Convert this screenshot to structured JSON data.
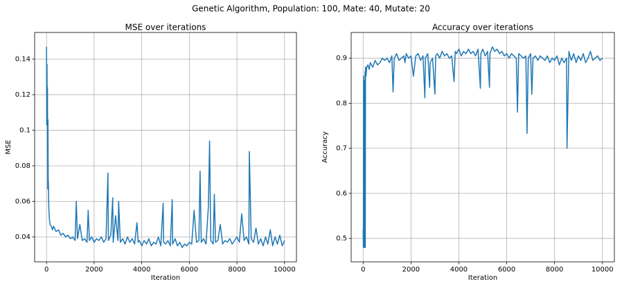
{
  "title": "Genetic Algorithm, Population: 100, Mate: 40, Mutate: 20",
  "chart_data": [
    {
      "type": "line",
      "title": "MSE over iterations",
      "xlabel": "Iteration",
      "ylabel": "MSE",
      "grid": true,
      "color": "#1f77b4",
      "xlim": [
        -500,
        10500
      ],
      "ylim": [
        0.026,
        0.155
      ],
      "xticks": [
        0,
        2000,
        4000,
        6000,
        8000,
        10000
      ],
      "yticks": [
        0.04,
        0.06,
        0.08,
        0.1,
        0.12,
        0.14
      ],
      "x": [
        0,
        10,
        20,
        30,
        40,
        50,
        60,
        70,
        80,
        90,
        100,
        120,
        150,
        200,
        250,
        300,
        400,
        500,
        600,
        700,
        800,
        900,
        1000,
        1100,
        1200,
        1250,
        1300,
        1400,
        1500,
        1600,
        1700,
        1750,
        1800,
        1900,
        2000,
        2100,
        2200,
        2300,
        2400,
        2500,
        2580,
        2600,
        2700,
        2780,
        2800,
        2900,
        3000,
        3030,
        3100,
        3200,
        3300,
        3400,
        3500,
        3600,
        3700,
        3800,
        3850,
        3900,
        4000,
        4100,
        4200,
        4300,
        4400,
        4500,
        4600,
        4700,
        4800,
        4900,
        4920,
        5000,
        5100,
        5200,
        5280,
        5300,
        5400,
        5500,
        5600,
        5700,
        5800,
        5900,
        6000,
        6100,
        6200,
        6300,
        6400,
        6450,
        6500,
        6600,
        6700,
        6800,
        6850,
        6900,
        7000,
        7050,
        7100,
        7200,
        7300,
        7400,
        7500,
        7600,
        7700,
        7800,
        7900,
        8000,
        8100,
        8200,
        8300,
        8400,
        8500,
        8520,
        8600,
        8700,
        8800,
        8900,
        9000,
        9100,
        9200,
        9300,
        9400,
        9500,
        9600,
        9700,
        9800,
        9900,
        10000
      ],
      "values": [
        0.147,
        0.103,
        0.137,
        0.105,
        0.124,
        0.067,
        0.106,
        0.072,
        0.07,
        0.06,
        0.055,
        0.05,
        0.047,
        0.046,
        0.044,
        0.046,
        0.043,
        0.044,
        0.041,
        0.042,
        0.04,
        0.041,
        0.039,
        0.04,
        0.038,
        0.06,
        0.039,
        0.047,
        0.038,
        0.039,
        0.037,
        0.055,
        0.038,
        0.04,
        0.037,
        0.039,
        0.038,
        0.04,
        0.037,
        0.039,
        0.076,
        0.038,
        0.041,
        0.062,
        0.037,
        0.052,
        0.038,
        0.06,
        0.037,
        0.039,
        0.036,
        0.04,
        0.037,
        0.039,
        0.036,
        0.048,
        0.037,
        0.038,
        0.035,
        0.038,
        0.036,
        0.039,
        0.035,
        0.037,
        0.036,
        0.04,
        0.035,
        0.059,
        0.037,
        0.036,
        0.038,
        0.035,
        0.061,
        0.036,
        0.039,
        0.035,
        0.037,
        0.034,
        0.036,
        0.035,
        0.037,
        0.036,
        0.055,
        0.037,
        0.038,
        0.077,
        0.037,
        0.039,
        0.036,
        0.057,
        0.094,
        0.038,
        0.036,
        0.064,
        0.037,
        0.038,
        0.047,
        0.036,
        0.038,
        0.037,
        0.039,
        0.036,
        0.038,
        0.04,
        0.037,
        0.053,
        0.038,
        0.04,
        0.036,
        0.088,
        0.039,
        0.037,
        0.045,
        0.036,
        0.039,
        0.035,
        0.04,
        0.036,
        0.044,
        0.035,
        0.04,
        0.036,
        0.041,
        0.035,
        0.038
      ]
    },
    {
      "type": "line",
      "title": "Accuracy over iterations",
      "xlabel": "Iteration",
      "ylabel": "Accuracy",
      "grid": true,
      "color": "#1f77b4",
      "xlim": [
        -500,
        10500
      ],
      "ylim": [
        0.448,
        0.957
      ],
      "xticks": [
        0,
        2000,
        4000,
        6000,
        8000,
        10000
      ],
      "yticks": [
        0.5,
        0.6,
        0.7,
        0.8,
        0.9
      ],
      "x": [
        0,
        10,
        20,
        30,
        40,
        50,
        60,
        70,
        80,
        90,
        100,
        120,
        150,
        200,
        250,
        300,
        400,
        500,
        600,
        700,
        800,
        900,
        1000,
        1100,
        1200,
        1250,
        1300,
        1400,
        1500,
        1600,
        1700,
        1750,
        1800,
        1900,
        2000,
        2100,
        2200,
        2300,
        2400,
        2500,
        2580,
        2600,
        2700,
        2780,
        2800,
        2900,
        3000,
        3030,
        3100,
        3200,
        3300,
        3400,
        3500,
        3600,
        3700,
        3800,
        3850,
        3900,
        4000,
        4100,
        4200,
        4300,
        4400,
        4500,
        4600,
        4700,
        4800,
        4900,
        4920,
        5000,
        5100,
        5200,
        5280,
        5300,
        5400,
        5500,
        5600,
        5700,
        5800,
        5900,
        6000,
        6100,
        6200,
        6300,
        6400,
        6450,
        6500,
        6600,
        6700,
        6800,
        6850,
        6900,
        7000,
        7050,
        7100,
        7200,
        7300,
        7400,
        7500,
        7600,
        7700,
        7800,
        7900,
        8000,
        8100,
        8200,
        8300,
        8400,
        8500,
        8520,
        8600,
        8700,
        8800,
        8900,
        9000,
        9100,
        9200,
        9300,
        9400,
        9500,
        9600,
        9700,
        9800,
        9900,
        10000
      ],
      "values": [
        0.52,
        0.48,
        0.86,
        0.48,
        0.85,
        0.48,
        0.84,
        0.48,
        0.87,
        0.48,
        0.88,
        0.86,
        0.88,
        0.885,
        0.875,
        0.89,
        0.88,
        0.895,
        0.885,
        0.89,
        0.9,
        0.895,
        0.9,
        0.89,
        0.905,
        0.825,
        0.9,
        0.91,
        0.895,
        0.9,
        0.905,
        0.89,
        0.91,
        0.9,
        0.905,
        0.86,
        0.905,
        0.91,
        0.895,
        0.905,
        0.812,
        0.9,
        0.91,
        0.835,
        0.89,
        0.9,
        0.82,
        0.905,
        0.91,
        0.9,
        0.915,
        0.905,
        0.91,
        0.9,
        0.905,
        0.848,
        0.915,
        0.91,
        0.92,
        0.905,
        0.915,
        0.91,
        0.92,
        0.91,
        0.915,
        0.905,
        0.92,
        0.833,
        0.91,
        0.92,
        0.905,
        0.915,
        0.835,
        0.91,
        0.925,
        0.915,
        0.92,
        0.91,
        0.915,
        0.905,
        0.91,
        0.9,
        0.91,
        0.905,
        0.9,
        0.78,
        0.91,
        0.905,
        0.9,
        0.905,
        0.733,
        0.9,
        0.91,
        0.82,
        0.9,
        0.905,
        0.895,
        0.905,
        0.9,
        0.895,
        0.905,
        0.89,
        0.9,
        0.895,
        0.905,
        0.885,
        0.9,
        0.89,
        0.9,
        0.7,
        0.915,
        0.895,
        0.91,
        0.89,
        0.905,
        0.895,
        0.91,
        0.89,
        0.9,
        0.915,
        0.895,
        0.9,
        0.905,
        0.895,
        0.9
      ]
    }
  ]
}
